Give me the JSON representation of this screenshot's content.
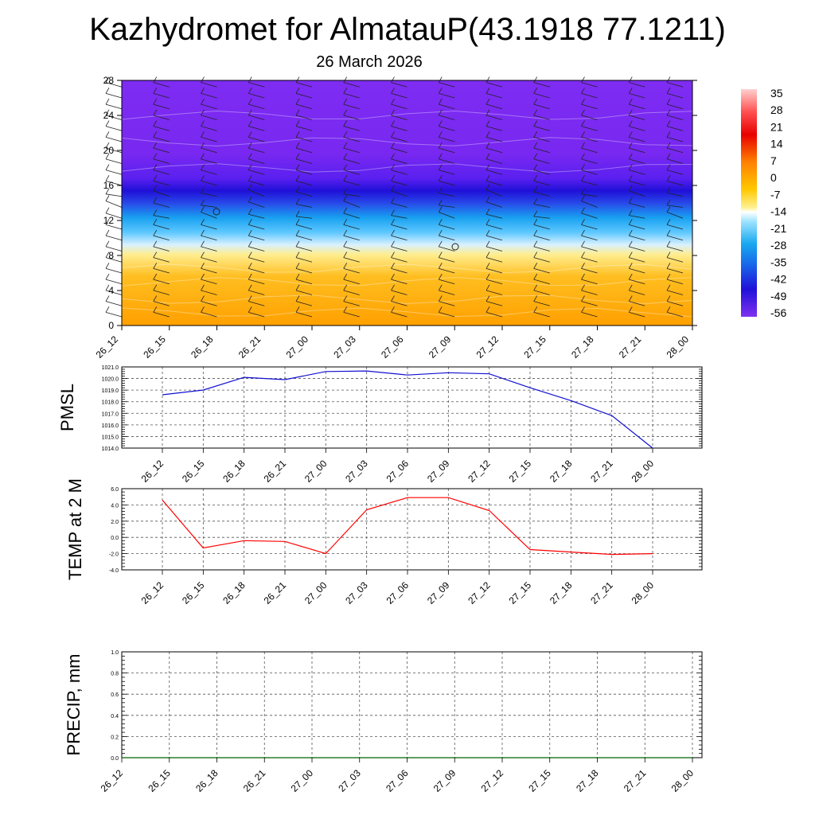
{
  "title": "Kazhydromet for AlmatauP(43.1918 77.1211)",
  "subtitle": "26 March 2026",
  "colors": {
    "pmsl": "#1010d0",
    "temp": "#ff0000",
    "precip": "#006400"
  },
  "chart_data": [
    {
      "type": "heatmap",
      "y": {
        "ticks": [
          0,
          4,
          8,
          12,
          16,
          20,
          24,
          28
        ],
        "ylim": [
          0,
          28
        ]
      },
      "x": {
        "ticks": [
          "26_12",
          "26_15",
          "26_18",
          "26_21",
          "27_00",
          "27_03",
          "27_06",
          "27_09",
          "27_12",
          "27_15",
          "27_18",
          "27_21",
          "28_00"
        ]
      },
      "colorbar": {
        "labels": [
          35,
          28,
          21,
          14,
          7,
          0,
          -7,
          -14,
          -21,
          -28,
          -35,
          -42,
          -49,
          -56
        ]
      },
      "value_profile_by_height": [
        {
          "y": 0,
          "value": 12
        },
        {
          "y": 8,
          "value": 0
        },
        {
          "y": 9.5,
          "value": -12
        },
        {
          "y": 12,
          "value": -30
        },
        {
          "y": 14.5,
          "value": -45
        },
        {
          "y": 16,
          "value": -58
        },
        {
          "y": 20,
          "value": -54
        },
        {
          "y": 28,
          "value": -52
        }
      ],
      "wind_barbs": "present at each time step"
    },
    {
      "type": "line",
      "ylabel": "PMSL",
      "ylim": [
        1014.0,
        1021.0
      ],
      "yticks": [
        "1021.0",
        "1020.0",
        "1019.0",
        "1018.0",
        "1017.0",
        "1016.0",
        "1015.0",
        "1014.0"
      ],
      "x": [
        "26_12",
        "26_15",
        "26_18",
        "26_21",
        "27_00",
        "27_03",
        "27_06",
        "27_09",
        "27_12",
        "27_15",
        "27_18",
        "27_21",
        "28_00"
      ],
      "values": [
        1018.6,
        1019.0,
        1020.1,
        1019.9,
        1020.6,
        1020.65,
        1020.3,
        1020.5,
        1020.4,
        1019.2,
        1018.1,
        1016.8,
        1014.0
      ]
    },
    {
      "type": "line",
      "ylabel": "TEMP at 2 M",
      "ylim": [
        -4.0,
        6.0
      ],
      "yticks": [
        "6.0",
        "4.0",
        "2.0",
        "0.0",
        "-2.0",
        "-4.0"
      ],
      "x": [
        "26_12",
        "26_15",
        "26_18",
        "26_21",
        "27_00",
        "27_03",
        "27_06",
        "27_09",
        "27_12",
        "27_15",
        "27_18",
        "27_21",
        "28_00"
      ],
      "values": [
        4.6,
        -1.3,
        -0.4,
        -0.5,
        -2.0,
        3.4,
        4.9,
        4.9,
        3.3,
        -1.5,
        -1.8,
        -2.1,
        -2.0
      ]
    },
    {
      "type": "line",
      "ylabel": "PRECIP, mm",
      "ylim": [
        0.0,
        1.0
      ],
      "yticks": [
        "1.0",
        "0.8",
        "0.6",
        "0.4",
        "0.2",
        "0.0"
      ],
      "x": [
        "26_12",
        "26_15",
        "26_18",
        "26_21",
        "27_00",
        "27_03",
        "27_06",
        "27_09",
        "27_12",
        "27_15",
        "27_18",
        "27_21",
        "28_00"
      ],
      "values": [
        0,
        0,
        0,
        0,
        0,
        0,
        0,
        0,
        0,
        0,
        0,
        0,
        0
      ]
    }
  ]
}
